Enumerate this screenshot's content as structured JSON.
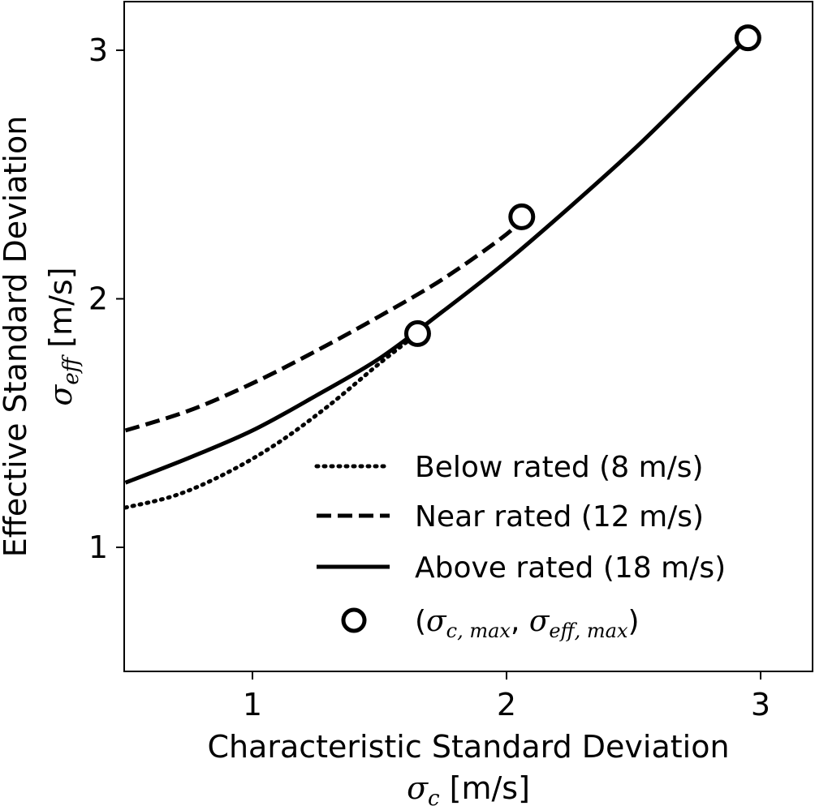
{
  "chart_data": {
    "type": "line",
    "xlabel": "Characteristic Standard Deviation",
    "xlabel_symbol": "σ",
    "xlabel_subscript": "c",
    "xlabel_unit": " [m/s]",
    "ylabel": "Effective Standard Deviation",
    "ylabel_symbol": "σ",
    "ylabel_subscript": "eff",
    "ylabel_unit": " [m/s]",
    "xlim": [
      0.5,
      3.2
    ],
    "ylim": [
      0.5,
      3.2
    ],
    "xticks": [
      1,
      2,
      3
    ],
    "xtick_labels": [
      "1",
      "2",
      "3"
    ],
    "yticks": [
      1,
      2,
      3
    ],
    "ytick_labels": [
      "1",
      "2",
      "3"
    ],
    "grid": false,
    "legend_position": "bottom-right",
    "series": [
      {
        "name": "Below rated (8 m/s)",
        "style": "dotted",
        "x": [
          0.5,
          0.7,
          0.9,
          1.1,
          1.3,
          1.5,
          1.65
        ],
        "y": [
          1.16,
          1.21,
          1.3,
          1.42,
          1.57,
          1.74,
          1.86
        ]
      },
      {
        "name": "Near rated (12 m/s)",
        "style": "dashed",
        "x": [
          0.5,
          0.75,
          1.0,
          1.25,
          1.5,
          1.75,
          2.0,
          2.06
        ],
        "y": [
          1.47,
          1.55,
          1.66,
          1.79,
          1.93,
          2.08,
          2.26,
          2.33
        ]
      },
      {
        "name": "Above rated (18 m/s)",
        "style": "solid",
        "x": [
          0.5,
          0.75,
          1.0,
          1.25,
          1.5,
          1.75,
          2.0,
          2.25,
          2.5,
          2.75,
          2.95
        ],
        "y": [
          1.26,
          1.36,
          1.47,
          1.61,
          1.76,
          1.95,
          2.15,
          2.37,
          2.6,
          2.85,
          3.05
        ]
      }
    ],
    "markers": {
      "name": "(σ_c,max, σ_eff,max)",
      "label_prefix": "(",
      "label_sym1": "σ",
      "label_sub1": "c, max",
      "label_sep": ", ",
      "label_sym2": "σ",
      "label_sub2": "eff, max",
      "label_suffix": ")",
      "points": [
        {
          "x": 1.65,
          "y": 1.86
        },
        {
          "x": 2.06,
          "y": 2.33
        },
        {
          "x": 2.95,
          "y": 3.05
        }
      ]
    }
  }
}
